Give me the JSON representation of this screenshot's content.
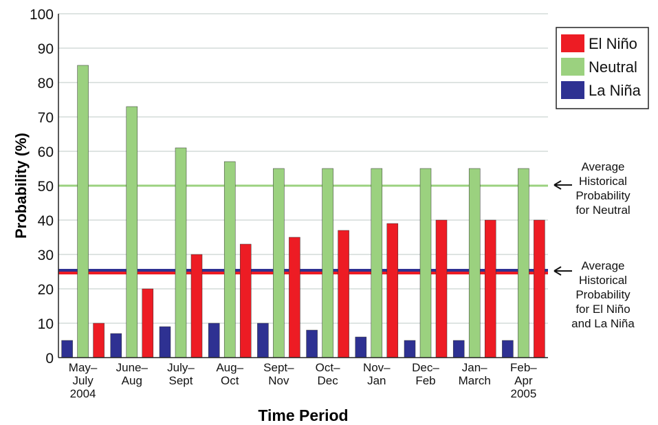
{
  "chart_data": {
    "type": "bar",
    "title": "",
    "xlabel": "Time Period",
    "ylabel": "Probability (%)",
    "ylim": [
      0,
      100
    ],
    "yticks": [
      0,
      10,
      20,
      30,
      40,
      50,
      60,
      70,
      80,
      90,
      100
    ],
    "grid": "horizontal",
    "legend_position": "top-right",
    "categories": [
      [
        "May–",
        "July",
        "2004"
      ],
      [
        "June–",
        "Aug"
      ],
      [
        "July–",
        "Sept"
      ],
      [
        "Aug–",
        "Oct"
      ],
      [
        "Sept–",
        "Nov"
      ],
      [
        "Oct–",
        "Dec"
      ],
      [
        "Nov–",
        "Jan"
      ],
      [
        "Dec–",
        "Feb"
      ],
      [
        "Jan–",
        "March"
      ],
      [
        "Feb–",
        "Apr",
        "2005"
      ]
    ],
    "series": [
      {
        "name": "La Niña",
        "color": "#2e3192",
        "values": [
          5,
          7,
          9,
          10,
          10,
          8,
          6,
          5,
          5,
          5
        ]
      },
      {
        "name": "Neutral",
        "color": "#9bd17f",
        "values": [
          85,
          73,
          61,
          57,
          55,
          55,
          55,
          55,
          55,
          55
        ]
      },
      {
        "name": "El Niño",
        "color": "#ed1c24",
        "values": [
          10,
          20,
          30,
          33,
          35,
          37,
          39,
          40,
          40,
          40
        ]
      }
    ],
    "legend_order": [
      "El Niño",
      "Neutral",
      "La Niña"
    ],
    "reference_lines": [
      {
        "value": 50,
        "color": "#9bd17f",
        "label_lines": [
          "Average",
          "Historical",
          "Probability",
          "for Neutral"
        ]
      },
      {
        "value": 25,
        "color": "#ed1c24",
        "color2": "#2e3192",
        "label_lines": [
          "Average",
          "Historical",
          "Probability",
          "for El Niño",
          "and La Niña"
        ]
      }
    ]
  }
}
